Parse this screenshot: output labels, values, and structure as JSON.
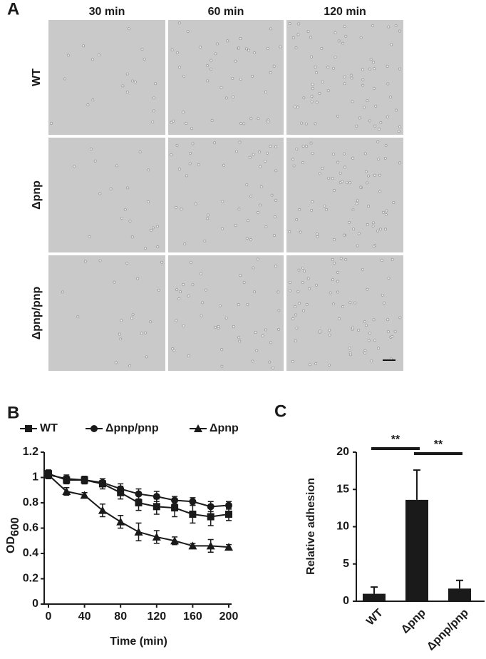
{
  "panel_a": {
    "label": "A",
    "columns": [
      "30 min",
      "60 min",
      "120 min"
    ],
    "rows": [
      "WT",
      "Δpnp",
      "Δpnp/pnp"
    ]
  },
  "panel_labels": [
    "B",
    "C"
  ],
  "chart_data": [
    {
      "type": "line",
      "x_label": "Time (min)",
      "y_label": "OD",
      "y_label_sub": "600",
      "x": [
        0,
        20,
        40,
        60,
        80,
        100,
        120,
        140,
        160,
        180,
        200
      ],
      "series": [
        {
          "name": "WT",
          "marker": "square",
          "color": "#1a1a1a",
          "values": [
            1.03,
            0.98,
            0.98,
            0.95,
            0.88,
            0.8,
            0.77,
            0.76,
            0.71,
            0.69,
            0.71
          ],
          "errors": [
            0.03,
            0.03,
            0.03,
            0.04,
            0.05,
            0.06,
            0.06,
            0.07,
            0.07,
            0.07,
            0.05
          ]
        },
        {
          "name": "Δpnp/pnp",
          "marker": "circle",
          "color": "#1a1a1a",
          "values": [
            1.02,
            0.99,
            0.98,
            0.96,
            0.91,
            0.87,
            0.85,
            0.82,
            0.81,
            0.77,
            0.78
          ],
          "errors": [
            0.03,
            0.03,
            0.03,
            0.03,
            0.04,
            0.04,
            0.04,
            0.03,
            0.03,
            0.04,
            0.03
          ]
        },
        {
          "name": "Δpnp",
          "marker": "triangle",
          "color": "#1a1a1a",
          "values": [
            1.02,
            0.89,
            0.86,
            0.74,
            0.65,
            0.57,
            0.53,
            0.5,
            0.46,
            0.46,
            0.45
          ],
          "errors": [
            0.03,
            0.03,
            0.02,
            0.05,
            0.05,
            0.07,
            0.05,
            0.03,
            0.02,
            0.05,
            0.02
          ]
        }
      ],
      "xlim": [
        0,
        200
      ],
      "xticks": [
        0,
        40,
        80,
        120,
        160,
        200
      ],
      "ylim": [
        0,
        1.2
      ],
      "yticks": [
        0,
        0.2,
        0.4,
        0.6,
        0.8,
        1,
        1.2
      ]
    },
    {
      "type": "bar",
      "y_label": "Relative adhesion",
      "color": "#1a1a1a",
      "categories": [
        "WT",
        "Δpnp",
        "Δpnp/pnp"
      ],
      "values": [
        1.0,
        13.6,
        1.7
      ],
      "errors": [
        0.9,
        4.0,
        1.1
      ],
      "ylim": [
        0,
        20
      ],
      "yticks": [
        0,
        5,
        10,
        15,
        20
      ],
      "brackets": [
        {
          "label": "**",
          "between": [
            0,
            1
          ]
        },
        {
          "label": "**",
          "between": [
            1,
            2
          ]
        }
      ]
    }
  ]
}
